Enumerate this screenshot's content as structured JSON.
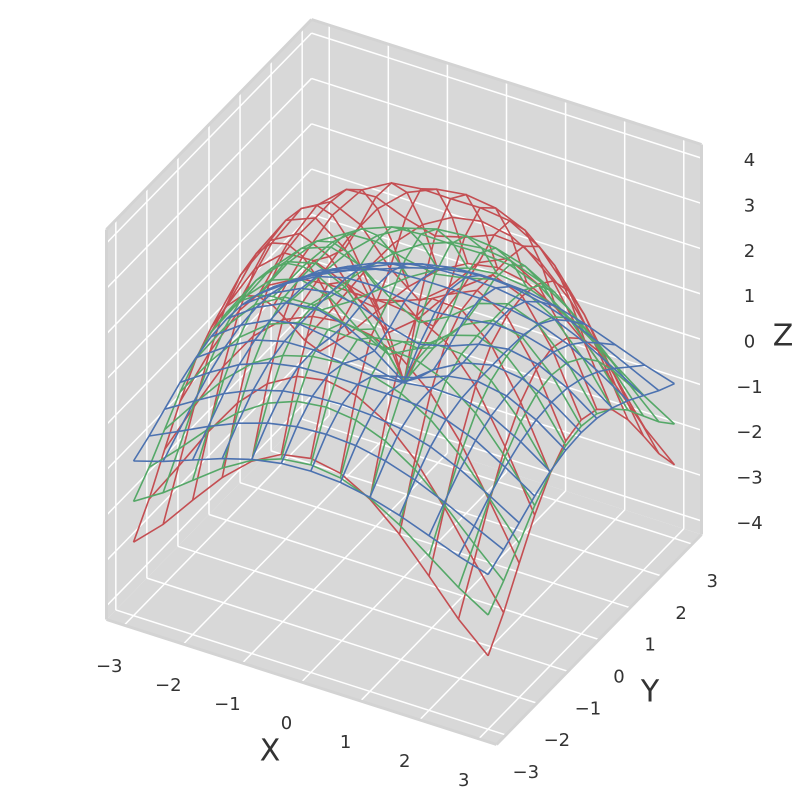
{
  "chart_data": {
    "type": "wireframe",
    "xlabel": "X",
    "ylabel": "Y",
    "zlabel": "Z",
    "x": [
      -3,
      -2.5,
      -2,
      -1.5,
      -1,
      -0.5,
      0,
      0.5,
      1,
      1.5,
      2,
      2.5,
      3
    ],
    "y": [
      -3,
      -2.5,
      -2,
      -1.5,
      -1,
      -0.5,
      0,
      0.5,
      1,
      1.5,
      2,
      2.5,
      3
    ],
    "xlim": [
      -3.3,
      3.3
    ],
    "ylim": [
      -3.3,
      3.3
    ],
    "zlim": [
      -4.3,
      4.3
    ],
    "xticks": [
      {
        "value": -3,
        "label": "−3"
      },
      {
        "value": -2,
        "label": "−2"
      },
      {
        "value": -1,
        "label": "−1"
      },
      0,
      1,
      2,
      3
    ],
    "yticks": [
      {
        "value": -3,
        "label": "−3"
      },
      {
        "value": -2,
        "label": "−2"
      },
      {
        "value": -1,
        "label": "−1"
      },
      0,
      1,
      2,
      3
    ],
    "zticks": [
      {
        "value": -4,
        "label": "−4"
      },
      {
        "value": -3,
        "label": "−3"
      },
      {
        "value": -2,
        "label": "−2"
      },
      {
        "value": -1,
        "label": "−1"
      },
      0,
      1,
      2,
      3,
      4
    ],
    "grid": true,
    "pane_color": "#d8d8d8",
    "series": [
      {
        "color": "#c44e52",
        "values": [
          [
            -2.68,
            -2.08,
            -1.34,
            -0.63,
            -0.06,
            0.3,
            0.42,
            0.3,
            -0.06,
            -0.63,
            -1.34,
            -2.08,
            -2.68
          ],
          [
            -2.08,
            -1.15,
            -0.18,
            0.67,
            1.3,
            1.67,
            1.79,
            1.67,
            1.3,
            0.67,
            -0.18,
            -1.15,
            -2.08
          ],
          [
            -1.34,
            -0.18,
            0.92,
            1.79,
            2.36,
            2.64,
            2.73,
            2.64,
            2.36,
            1.79,
            0.92,
            -0.18,
            -1.34
          ],
          [
            -0.63,
            0.67,
            1.79,
            2.56,
            2.92,
            3,
            2.99,
            3,
            2.92,
            2.56,
            1.79,
            0.67,
            -0.63
          ],
          [
            -0.06,
            1.3,
            2.36,
            2.92,
            2.96,
            2.7,
            2.52,
            2.7,
            2.96,
            2.92,
            2.36,
            1.3,
            -0.06
          ],
          [
            0.3,
            1.67,
            2.64,
            3,
            2.7,
            1.95,
            1.44,
            1.95,
            2.7,
            3,
            2.64,
            1.67,
            0.3
          ],
          [
            0.42,
            1.79,
            2.73,
            2.99,
            2.52,
            1.44,
            0,
            1.44,
            2.52,
            2.99,
            2.73,
            1.79,
            0.42
          ],
          [
            0.3,
            1.67,
            2.64,
            3,
            2.7,
            1.95,
            1.44,
            1.95,
            2.7,
            3,
            2.64,
            1.67,
            0.3
          ],
          [
            -0.06,
            1.3,
            2.36,
            2.92,
            2.96,
            2.7,
            2.52,
            2.7,
            2.96,
            2.92,
            2.36,
            1.3,
            -0.06
          ],
          [
            -0.63,
            0.67,
            1.79,
            2.56,
            2.92,
            3,
            2.99,
            3,
            2.92,
            2.56,
            1.79,
            0.67,
            -0.63
          ],
          [
            -1.34,
            -0.18,
            0.92,
            1.79,
            2.36,
            2.64,
            2.73,
            2.64,
            2.36,
            1.79,
            0.92,
            -0.18,
            -1.34
          ],
          [
            -2.08,
            -1.15,
            -0.18,
            0.67,
            1.3,
            1.67,
            1.79,
            1.67,
            1.3,
            0.67,
            -0.18,
            -1.15,
            -2.08
          ],
          [
            -2.68,
            -2.08,
            -1.34,
            -0.63,
            -0.06,
            0.3,
            0.42,
            0.3,
            -0.06,
            -0.63,
            -1.34,
            -2.08,
            -2.68
          ]
        ]
      },
      {
        "color": "#55a868",
        "values": [
          [
            -1.78,
            -1.38,
            -0.9,
            -0.42,
            -0.04,
            0.2,
            0.28,
            0.2,
            -0.04,
            -0.42,
            -0.9,
            -1.38,
            -1.78
          ],
          [
            -1.38,
            -0.77,
            -0.12,
            0.45,
            0.87,
            1.12,
            1.2,
            1.12,
            0.87,
            0.45,
            -0.12,
            -0.77,
            -1.38
          ],
          [
            -0.9,
            -0.12,
            0.62,
            1.2,
            1.57,
            1.76,
            1.82,
            1.76,
            1.57,
            1.2,
            0.62,
            -0.12,
            -0.9
          ],
          [
            -0.42,
            0.45,
            1.2,
            1.7,
            1.95,
            2,
            1.99,
            2,
            1.95,
            1.7,
            1.2,
            0.45,
            -0.42
          ],
          [
            -0.04,
            0.87,
            1.57,
            1.95,
            1.98,
            1.8,
            1.68,
            1.8,
            1.98,
            1.95,
            1.57,
            0.87,
            -0.04
          ],
          [
            0.2,
            1.12,
            1.76,
            2,
            1.8,
            1.3,
            0.96,
            1.3,
            1.8,
            2,
            1.76,
            1.12,
            0.2
          ],
          [
            0.28,
            1.2,
            1.82,
            1.99,
            1.68,
            0.96,
            0,
            0.96,
            1.68,
            1.99,
            1.82,
            1.2,
            0.28
          ],
          [
            0.2,
            1.12,
            1.76,
            2,
            1.8,
            1.3,
            0.96,
            1.3,
            1.8,
            2,
            1.76,
            1.12,
            0.2
          ],
          [
            -0.04,
            0.87,
            1.57,
            1.95,
            1.98,
            1.8,
            1.68,
            1.8,
            1.98,
            1.95,
            1.57,
            0.87,
            -0.04
          ],
          [
            -0.42,
            0.45,
            1.2,
            1.7,
            1.95,
            2,
            1.99,
            2,
            1.95,
            1.7,
            1.2,
            0.45,
            -0.42
          ],
          [
            -0.9,
            -0.12,
            0.62,
            1.2,
            1.57,
            1.76,
            1.82,
            1.76,
            1.57,
            1.2,
            0.62,
            -0.12,
            -0.9
          ],
          [
            -1.38,
            -0.77,
            -0.12,
            0.45,
            0.87,
            1.12,
            1.2,
            1.12,
            0.87,
            0.45,
            -0.12,
            -0.77,
            -1.38
          ],
          [
            -1.78,
            -1.38,
            -0.9,
            -0.42,
            -0.04,
            0.2,
            0.28,
            0.2,
            -0.04,
            -0.42,
            -0.9,
            -1.38,
            -1.78
          ]
        ]
      },
      {
        "color": "#4c72b0",
        "values": [
          [
            -0.89,
            -0.69,
            -0.45,
            -0.21,
            -0.02,
            0.1,
            0.14,
            0.1,
            -0.02,
            -0.21,
            -0.45,
            -0.69,
            -0.89
          ],
          [
            -0.69,
            -0.38,
            -0.06,
            0.22,
            0.43,
            0.56,
            0.6,
            0.56,
            0.43,
            0.22,
            -0.06,
            -0.38,
            -0.69
          ],
          [
            -0.45,
            -0.06,
            0.31,
            0.6,
            0.79,
            0.88,
            0.91,
            0.88,
            0.79,
            0.6,
            0.31,
            -0.06,
            -0.45
          ],
          [
            -0.21,
            0.22,
            0.6,
            0.85,
            0.97,
            1,
            1,
            1,
            0.97,
            0.85,
            0.6,
            0.22,
            -0.21
          ],
          [
            -0.02,
            0.43,
            0.79,
            0.97,
            0.99,
            0.9,
            0.84,
            0.9,
            0.99,
            0.97,
            0.79,
            0.43,
            -0.02
          ],
          [
            0.1,
            0.56,
            0.88,
            1,
            0.9,
            0.65,
            0.48,
            0.65,
            0.9,
            1,
            0.88,
            0.56,
            0.1
          ],
          [
            0.14,
            0.6,
            0.91,
            1,
            0.84,
            0.48,
            0,
            0.48,
            0.84,
            1,
            0.91,
            0.6,
            0.14
          ],
          [
            0.1,
            0.56,
            0.88,
            1,
            0.9,
            0.65,
            0.48,
            0.65,
            0.9,
            1,
            0.88,
            0.56,
            0.1
          ],
          [
            -0.02,
            0.43,
            0.79,
            0.97,
            0.99,
            0.9,
            0.84,
            0.9,
            0.99,
            0.97,
            0.79,
            0.43,
            -0.02
          ],
          [
            -0.21,
            0.22,
            0.6,
            0.85,
            0.97,
            1,
            1,
            1,
            0.97,
            0.85,
            0.6,
            0.22,
            -0.21
          ],
          [
            -0.45,
            -0.06,
            0.31,
            0.6,
            0.79,
            0.88,
            0.91,
            0.88,
            0.79,
            0.6,
            0.31,
            -0.06,
            -0.45
          ],
          [
            -0.69,
            -0.38,
            -0.06,
            0.22,
            0.43,
            0.56,
            0.6,
            0.56,
            0.43,
            0.22,
            -0.06,
            -0.38,
            -0.69
          ],
          [
            -0.89,
            -0.69,
            -0.45,
            -0.21,
            -0.02,
            0.1,
            0.14,
            0.1,
            -0.02,
            -0.21,
            -0.45,
            -0.69,
            -0.89
          ]
        ]
      }
    ]
  }
}
